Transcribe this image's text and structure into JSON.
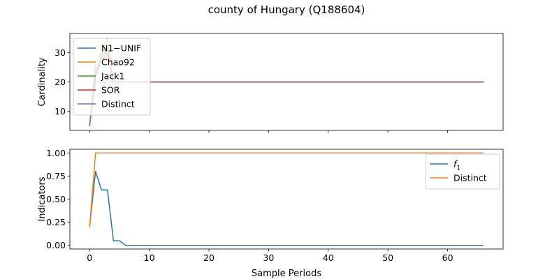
{
  "figure": {
    "title": "county of Hungary (Q188604)"
  },
  "chart_data": [
    {
      "type": "line",
      "ylabel": "Cardinality",
      "xlim": [
        -3.3,
        69.3
      ],
      "ylim": [
        3.5,
        36.5
      ],
      "yticks": [
        10,
        20,
        30
      ],
      "xticks": [
        0,
        10,
        20,
        30,
        40,
        50,
        60
      ],
      "show_xticklabels": false,
      "grid": false,
      "legend_position": "upper-left",
      "series": [
        {
          "name": "N1−UNIF",
          "color": "#1f77b4",
          "x": [
            0,
            1,
            2,
            3,
            4,
            66
          ],
          "y": [
            5,
            22,
            29,
            32,
            20,
            20
          ]
        },
        {
          "name": "Chao92",
          "color": "#ff7f0e",
          "x": [
            0,
            1,
            2,
            3,
            4,
            66
          ],
          "y": [
            5,
            26,
            30,
            35,
            20,
            20
          ]
        },
        {
          "name": "Jack1",
          "color": "#2ca02c",
          "x": [
            0,
            1,
            2,
            3,
            4,
            66
          ],
          "y": [
            5,
            24,
            28,
            31,
            20,
            20
          ]
        },
        {
          "name": "SOR",
          "color": "#d62728",
          "x": [
            0,
            1,
            2,
            3,
            4,
            66
          ],
          "y": [
            5,
            22,
            27,
            30,
            20,
            20
          ]
        },
        {
          "name": "Distinct",
          "color": "#9467bd",
          "x": [
            0,
            1,
            2,
            3,
            4,
            66
          ],
          "y": [
            5,
            20,
            20,
            20,
            20,
            20
          ]
        }
      ]
    },
    {
      "type": "line",
      "ylabel": "Indicators",
      "xlabel": "Sample Periods",
      "xlim": [
        -3.3,
        69.3
      ],
      "ylim": [
        -0.04,
        1.04
      ],
      "yticks": [
        "0.00",
        "0.25",
        "0.50",
        "0.75",
        "1.00"
      ],
      "xticks": [
        "0",
        "10",
        "20",
        "30",
        "40",
        "50",
        "60"
      ],
      "show_xticklabels": true,
      "grid": false,
      "legend_position": "upper-right",
      "series": [
        {
          "name": "f",
          "name_sub": "1",
          "color": "#1f77b4",
          "x": [
            0,
            1,
            2,
            3,
            4,
            5,
            6,
            66
          ],
          "y": [
            0.2,
            0.8,
            0.6,
            0.6,
            0.05,
            0.05,
            0.0,
            0.0
          ]
        },
        {
          "name": "Distinct",
          "color": "#ff7f0e",
          "x": [
            0,
            1,
            2,
            66
          ],
          "y": [
            0.2,
            1.0,
            1.0,
            1.0
          ]
        }
      ]
    }
  ]
}
